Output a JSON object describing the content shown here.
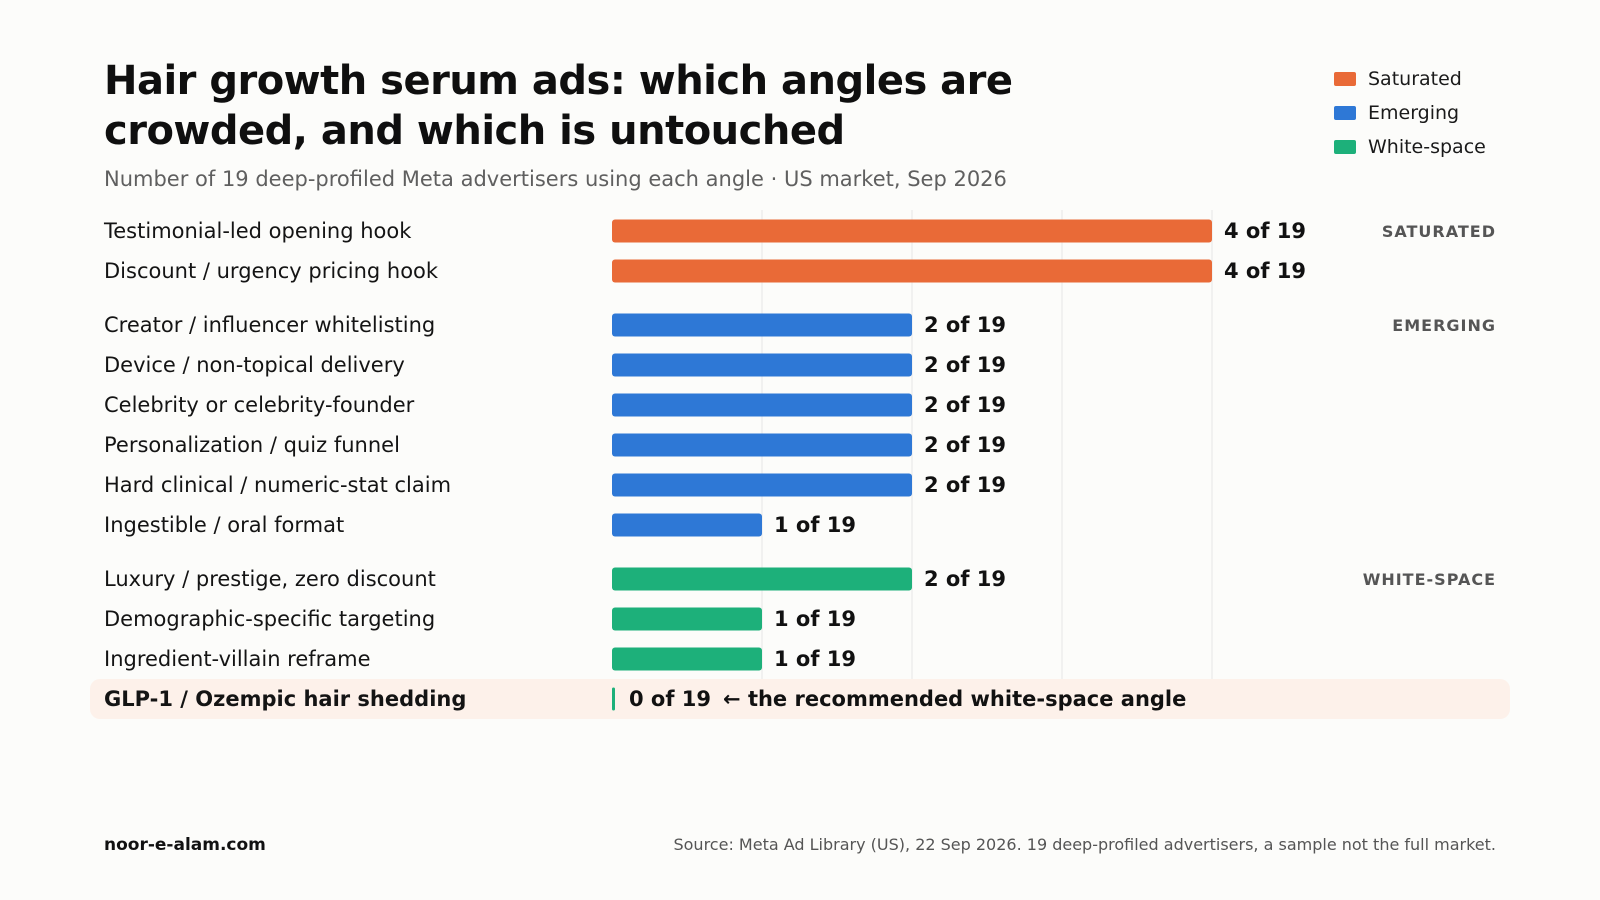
{
  "title": "Hair growth serum ads: which angles are crowded, and which is untouched",
  "subtitle": "Number of 19 deep-profiled Meta advertisers using each angle · US market, Sep 2026",
  "colors": {
    "Saturated": "#e96a37",
    "Emerging": "#2e78d6",
    "White-space": "#1db07a",
    "highlight_bg": "#fdf1ea",
    "grid": "#e6e6e6"
  },
  "legend": [
    {
      "label": "Saturated",
      "color": "#e96a37"
    },
    {
      "label": "Emerging",
      "color": "#2e78d6"
    },
    {
      "label": "White-space",
      "color": "#1db07a"
    }
  ],
  "chart_data": {
    "type": "bar",
    "orientation": "horizontal",
    "xlim": [
      0,
      4
    ],
    "grid": true,
    "total": 19,
    "value_suffix": "of 19",
    "groups": [
      {
        "name": "Saturated",
        "label": "SATURATED"
      },
      {
        "name": "Emerging",
        "label": "EMERGING"
      },
      {
        "name": "White-space",
        "label": "WHITE-SPACE"
      }
    ],
    "bars": [
      {
        "category": "Testimonial-led opening hook",
        "value": 4,
        "group": "Saturated"
      },
      {
        "category": "Discount / urgency pricing hook",
        "value": 4,
        "group": "Saturated"
      },
      {
        "category": "Creator / influencer whitelisting",
        "value": 2,
        "group": "Emerging"
      },
      {
        "category": "Device / non-topical delivery",
        "value": 2,
        "group": "Emerging"
      },
      {
        "category": "Celebrity or celebrity-founder",
        "value": 2,
        "group": "Emerging"
      },
      {
        "category": "Personalization / quiz funnel",
        "value": 2,
        "group": "Emerging"
      },
      {
        "category": "Hard clinical / numeric-stat claim",
        "value": 2,
        "group": "Emerging"
      },
      {
        "category": "Ingestible / oral format",
        "value": 1,
        "group": "Emerging"
      },
      {
        "category": "Luxury / prestige, zero discount",
        "value": 2,
        "group": "White-space"
      },
      {
        "category": "Demographic-specific targeting",
        "value": 1,
        "group": "White-space"
      },
      {
        "category": "Ingredient-villain reframe",
        "value": 1,
        "group": "White-space"
      },
      {
        "category": "GLP-1 / Ozempic hair shedding",
        "value": 0,
        "group": "White-space",
        "highlight": true,
        "annotation": "← the recommended white-space angle"
      }
    ]
  },
  "footer": {
    "site": "noor-e-alam.com",
    "source": "Source: Meta Ad Library (US), 22 Sep 2026. 19 deep-profiled advertisers, a sample not the full market."
  }
}
